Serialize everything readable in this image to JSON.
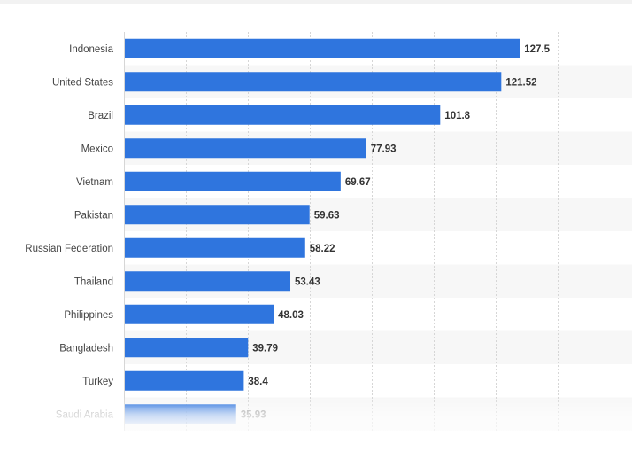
{
  "chart_data": {
    "type": "bar",
    "orientation": "horizontal",
    "categories": [
      "Indonesia",
      "United States",
      "Brazil",
      "Mexico",
      "Vietnam",
      "Pakistan",
      "Russian Federation",
      "Thailand",
      "Philippines",
      "Bangladesh",
      "Turkey",
      "Saudi Arabia"
    ],
    "values": [
      127.5,
      121.52,
      101.8,
      77.93,
      69.67,
      59.63,
      58.22,
      53.43,
      48.03,
      39.79,
      38.4,
      35.93
    ],
    "value_labels": [
      "127.5",
      "121.52",
      "101.8",
      "77.93",
      "69.67",
      "59.63",
      "58.22",
      "53.43",
      "48.03",
      "39.79",
      "38.4",
      "35.93"
    ],
    "xlim": [
      0,
      160
    ],
    "grid": true,
    "bar_color": "#2f75de",
    "title": "",
    "xlabel": "",
    "ylabel": ""
  }
}
